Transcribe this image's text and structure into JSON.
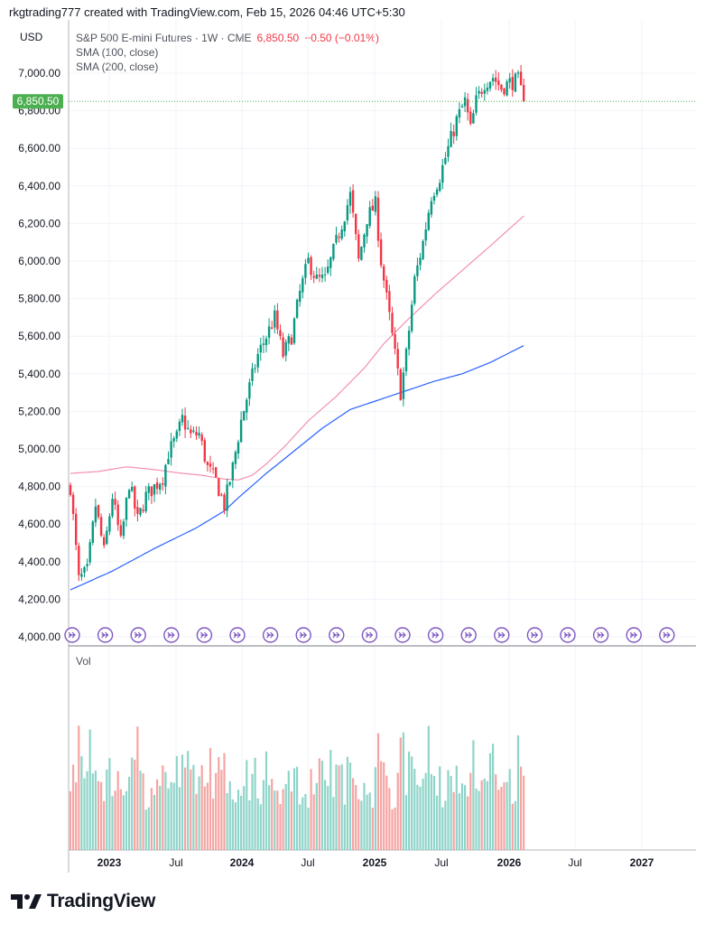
{
  "header": {
    "credit": "rkgtrading777 created with TradingView.com, Feb 15, 2026 04:46 UTC+5:30"
  },
  "legend": {
    "currency": "USD",
    "symbol": "S&P 500 E-mini Futures · 1W · CME",
    "price": "6,850.50",
    "change": "−0.50 (−0.01%)",
    "ma1": "SMA (100, close)",
    "ma2": "SMA (200, close)",
    "volume": "Vol"
  },
  "price_tag": "6,850.50",
  "branding": {
    "logo_text": "TradingView"
  },
  "colors": {
    "up": "#26a69a",
    "down": "#ef5350",
    "up_strong": "#089981",
    "down_strong": "#f23645",
    "sma100": "#f48fb1",
    "sma200": "#2962ff",
    "price_line": "#4caf50",
    "grid": "#f0f3fa",
    "event": "#7e57c2"
  },
  "chart_data": {
    "type": "candlestick",
    "timeframe": "1W",
    "y_ticks": [
      "4,000.00",
      "4,200.00",
      "4,400.00",
      "4,600.00",
      "4,800.00",
      "5,000.00",
      "5,200.00",
      "5,400.00",
      "5,600.00",
      "5,800.00",
      "6,000.00",
      "6,200.00",
      "6,400.00",
      "6,600.00",
      "6,800.00",
      "7,000.00"
    ],
    "ylim": [
      4000,
      7100
    ],
    "x_ticks": [
      "2023",
      "Jul",
      "2024",
      "Jul",
      "2025",
      "Jul",
      "2026",
      "Jul",
      "2027"
    ],
    "price_anchors": [
      [
        0,
        4800
      ],
      [
        3,
        4300
      ],
      [
        6,
        4350
      ],
      [
        9,
        4700
      ],
      [
        12,
        4450
      ],
      [
        15,
        4750
      ],
      [
        18,
        4500
      ],
      [
        21,
        4820
      ],
      [
        24,
        4620
      ],
      [
        27,
        4750
      ],
      [
        30,
        4800
      ],
      [
        33,
        4850
      ],
      [
        35,
        4980
      ],
      [
        38,
        5060
      ],
      [
        40,
        5160
      ],
      [
        43,
        5070
      ],
      [
        46,
        5080
      ],
      [
        49,
        4900
      ],
      [
        52,
        4830
      ],
      [
        55,
        4700
      ],
      [
        58,
        4900
      ],
      [
        61,
        5150
      ],
      [
        64,
        5330
      ],
      [
        67,
        5500
      ],
      [
        70,
        5600
      ],
      [
        73,
        5700
      ],
      [
        76,
        5500
      ],
      [
        79,
        5600
      ],
      [
        82,
        5830
      ],
      [
        85,
        6000
      ],
      [
        88,
        5900
      ],
      [
        91,
        5900
      ],
      [
        94,
        6050
      ],
      [
        97,
        6200
      ],
      [
        100,
        6350
      ],
      [
        103,
        6000
      ],
      [
        106,
        6230
      ],
      [
        109,
        6300
      ],
      [
        111,
        6000
      ],
      [
        114,
        5700
      ],
      [
        116,
        5500
      ],
      [
        118,
        5300
      ],
      [
        120,
        5500
      ],
      [
        123,
        5900
      ],
      [
        126,
        6100
      ],
      [
        129,
        6350
      ],
      [
        132,
        6450
      ],
      [
        135,
        6600
      ],
      [
        138,
        6750
      ],
      [
        141,
        6850
      ],
      [
        143,
        6700
      ],
      [
        145,
        6850
      ],
      [
        148,
        6950
      ],
      [
        151,
        6980
      ],
      [
        154,
        6920
      ],
      [
        157,
        6950
      ],
      [
        160,
        6960
      ],
      [
        162,
        6850
      ]
    ],
    "sma100_anchors": [
      [
        0,
        4870
      ],
      [
        10,
        4880
      ],
      [
        20,
        4905
      ],
      [
        30,
        4890
      ],
      [
        40,
        4870
      ],
      [
        47,
        4860
      ],
      [
        55,
        4840
      ],
      [
        60,
        4835
      ],
      [
        65,
        4860
      ],
      [
        70,
        4920
      ],
      [
        77,
        5020
      ],
      [
        85,
        5150
      ],
      [
        95,
        5280
      ],
      [
        105,
        5430
      ],
      [
        112,
        5560
      ],
      [
        120,
        5680
      ],
      [
        130,
        5820
      ],
      [
        140,
        5950
      ],
      [
        150,
        6080
      ],
      [
        162,
        6240
      ]
    ],
    "sma200_anchors": [
      [
        0,
        4250
      ],
      [
        15,
        4350
      ],
      [
        30,
        4470
      ],
      [
        45,
        4580
      ],
      [
        55,
        4670
      ],
      [
        60,
        4740
      ],
      [
        70,
        4870
      ],
      [
        80,
        4990
      ],
      [
        90,
        5110
      ],
      [
        100,
        5210
      ],
      [
        110,
        5260
      ],
      [
        120,
        5310
      ],
      [
        130,
        5360
      ],
      [
        140,
        5400
      ],
      [
        150,
        5460
      ],
      [
        162,
        5550
      ]
    ],
    "volume_tall_bars": [
      [
        3,
        2.2
      ],
      [
        7,
        2.4
      ],
      [
        24,
        2.3
      ],
      [
        50,
        1.9
      ],
      [
        66,
        1.9
      ],
      [
        93,
        2.0
      ],
      [
        110,
        2.1
      ],
      [
        118,
        2.3
      ],
      [
        119,
        2.5
      ],
      [
        128,
        2.4
      ],
      [
        144,
        1.9
      ],
      [
        151,
        1.8
      ],
      [
        160,
        2.0
      ]
    ],
    "bar_count": 163,
    "event_marker_count": 19
  }
}
